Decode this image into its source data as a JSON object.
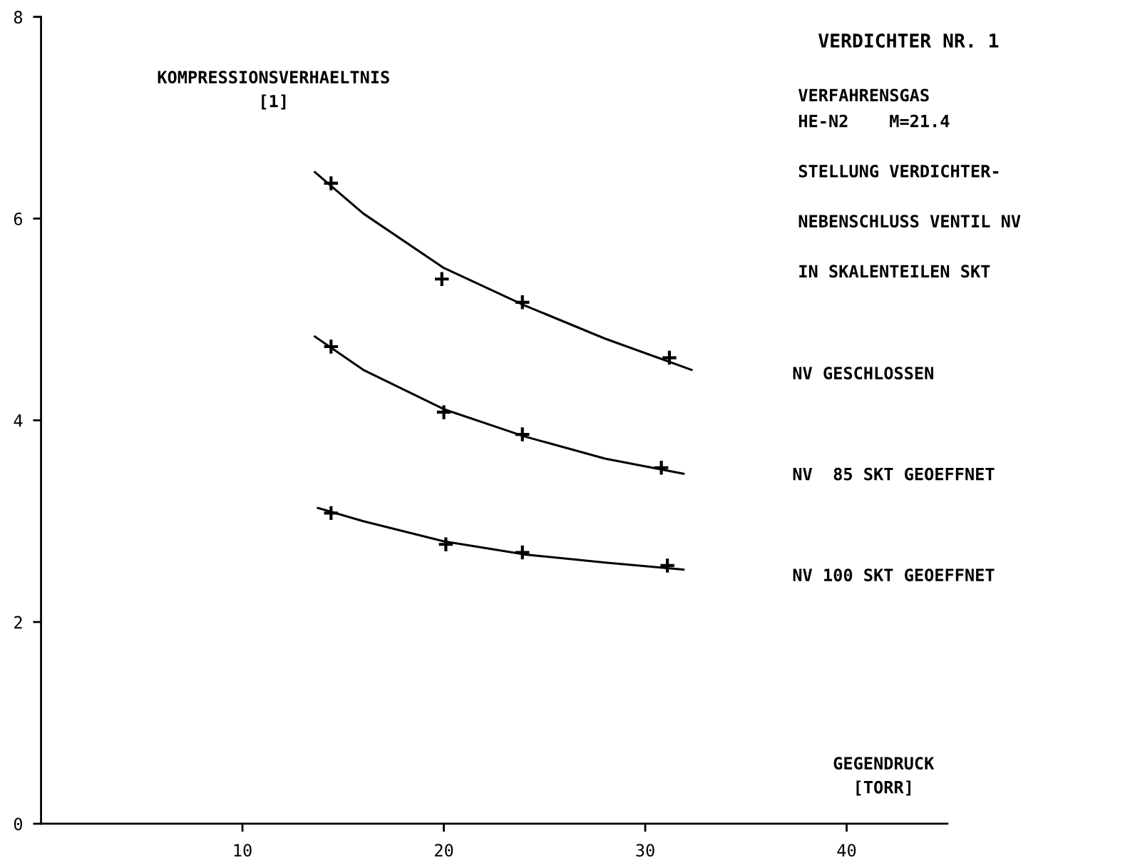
{
  "chart_data": {
    "type": "line",
    "title": "VERDICHTER NR. 1",
    "xlabel": "GEGENDRUCK\n[TORR]",
    "ylabel": "KOMPRESSIONSVERHAELTNIS\n[1]",
    "xlim": [
      0,
      45
    ],
    "ylim": [
      0,
      8
    ],
    "xticks": [
      10,
      20,
      30,
      40
    ],
    "yticks": [
      0,
      2,
      4,
      6,
      8
    ],
    "grid": false,
    "legend": false,
    "annotations": [
      "VERFAHRENSGAS",
      "HE-N2    M=21.4",
      "STELLUNG VERDICHTER-",
      "NEBENSCHLUSS VENTIL NV",
      "IN SKALENTEILEN SKT",
      "NV GESCHLOSSEN",
      "NV  85 SKT GEOEFFNET",
      "NV 100 SKT GEOEFFNET"
    ],
    "series": [
      {
        "type": "scatter",
        "marker": "cross",
        "color": "#000000",
        "x": [
          14.4,
          19.9,
          23.9,
          31.2
        ],
        "values": [
          6.35,
          5.4,
          5.17,
          4.62
        ]
      },
      {
        "type": "scatter",
        "marker": "cross",
        "color": "#000000",
        "x": [
          14.4,
          20.0,
          23.9,
          30.8
        ],
        "values": [
          4.73,
          4.08,
          3.86,
          3.53
        ]
      },
      {
        "type": "scatter",
        "marker": "cross",
        "color": "#000000",
        "x": [
          14.4,
          20.1,
          23.9,
          31.1
        ],
        "values": [
          3.08,
          2.77,
          2.69,
          2.56
        ]
      },
      {
        "color": "#000000",
        "x": [
          13.6,
          16,
          20,
          24,
          28,
          32.3
        ],
        "values": [
          6.46,
          6.05,
          5.51,
          5.14,
          4.81,
          4.5
        ]
      },
      {
        "color": "#000000",
        "x": [
          13.6,
          16,
          20,
          24,
          28,
          31.9
        ],
        "values": [
          4.83,
          4.5,
          4.11,
          3.84,
          3.62,
          3.47
        ]
      },
      {
        "color": "#000000",
        "x": [
          13.75,
          16,
          20,
          24,
          28,
          31.9
        ],
        "values": [
          3.13,
          3.0,
          2.8,
          2.67,
          2.59,
          2.52
        ]
      }
    ]
  }
}
